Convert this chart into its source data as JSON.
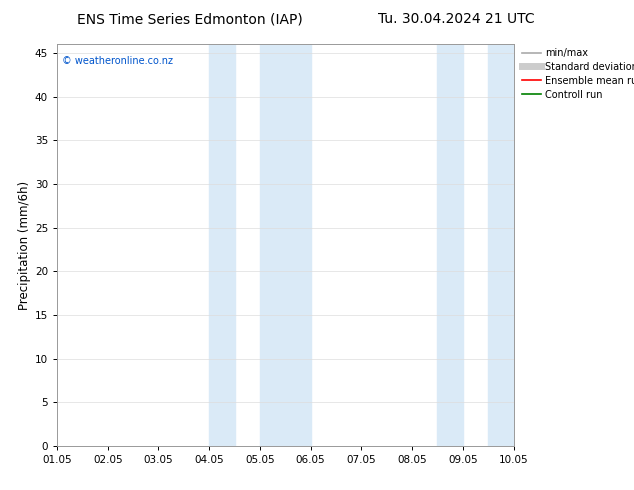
{
  "title_left": "ENS Time Series Edmonton (IAP)",
  "title_right": "Tu. 30.04.2024 21 UTC",
  "ylabel": "Precipitation (mm/6h)",
  "xlabel_ticks": [
    "01.05",
    "02.05",
    "03.05",
    "04.05",
    "05.05",
    "06.05",
    "07.05",
    "08.05",
    "09.05",
    "10.05"
  ],
  "xlim": [
    0,
    9
  ],
  "ylim": [
    0,
    46
  ],
  "yticks": [
    0,
    5,
    10,
    15,
    20,
    25,
    30,
    35,
    40,
    45
  ],
  "shaded_regions": [
    {
      "xmin": 3.0,
      "xmax": 3.5,
      "color": "#daeaf7"
    },
    {
      "xmin": 4.0,
      "xmax": 5.0,
      "color": "#daeaf7"
    },
    {
      "xmin": 7.5,
      "xmax": 8.0,
      "color": "#daeaf7"
    },
    {
      "xmin": 8.5,
      "xmax": 9.0,
      "color": "#daeaf7"
    }
  ],
  "watermark": "© weatheronline.co.nz",
  "watermark_color": "#0055cc",
  "legend_entries": [
    {
      "label": "min/max",
      "color": "#aaaaaa",
      "lw": 1.2,
      "style": "-"
    },
    {
      "label": "Standard deviation",
      "color": "#cccccc",
      "lw": 5,
      "style": "-"
    },
    {
      "label": "Ensemble mean run",
      "color": "#ff0000",
      "lw": 1.2,
      "style": "-"
    },
    {
      "label": "Controll run",
      "color": "#008000",
      "lw": 1.2,
      "style": "-"
    }
  ],
  "bg_color": "#ffffff",
  "grid_color": "#dddddd",
  "title_fontsize": 10,
  "tick_fontsize": 7.5,
  "ylabel_fontsize": 8.5
}
